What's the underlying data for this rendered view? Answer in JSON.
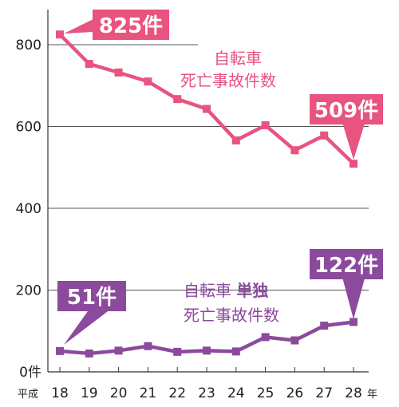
{
  "chart_data": {
    "type": "line",
    "x_prefix": "平成",
    "x_unit": "年",
    "categories": [
      "18",
      "19",
      "20",
      "21",
      "22",
      "23",
      "24",
      "25",
      "26",
      "27",
      "28"
    ],
    "y_ticks": [
      "0件",
      "200",
      "400",
      "600",
      "800"
    ],
    "ylim": [
      0,
      880
    ],
    "grid": true,
    "series": [
      {
        "name": "自転車\n死亡事故件数",
        "name_lines": [
          "自転車",
          "死亡事故件数"
        ],
        "color": "#e8537f",
        "values": [
          825,
          753,
          732,
          710,
          667,
          643,
          566,
          603,
          542,
          578,
          509
        ],
        "callouts": [
          {
            "index": 0,
            "text": "825件"
          },
          {
            "index": 10,
            "text": "509件"
          }
        ]
      },
      {
        "name": "自転車 単独\n死亡事故件数",
        "name_lines": [
          "自転車",
          "単独",
          "死亡事故件数"
        ],
        "color": "#8b4a9c",
        "values": [
          51,
          45,
          52,
          63,
          49,
          52,
          50,
          85,
          77,
          113,
          122
        ],
        "callouts": [
          {
            "index": 0,
            "text": "51件"
          },
          {
            "index": 10,
            "text": "122件"
          }
        ]
      }
    ]
  }
}
